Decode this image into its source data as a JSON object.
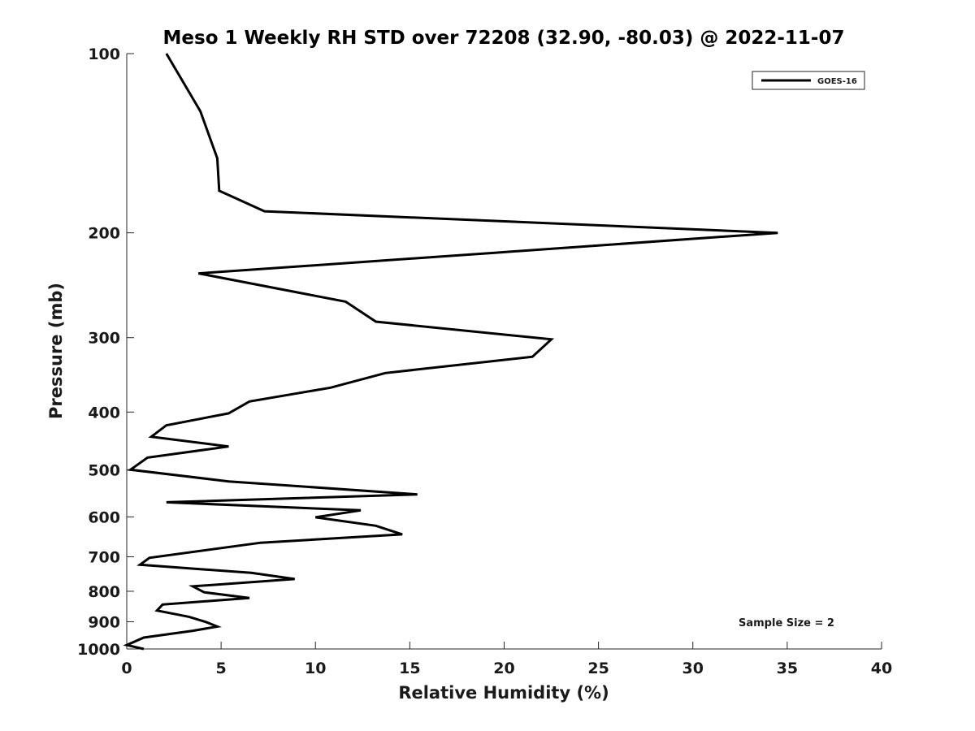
{
  "chart_data": {
    "type": "line",
    "title": "Meso 1 Weekly RH STD over 72208 (32.90, -80.03) @ 2022-11-07",
    "xlabel": "Relative Humidity (%)",
    "ylabel": "Pressure (mb)",
    "xlim": [
      0,
      40
    ],
    "ylim": [
      100,
      1000
    ],
    "yscale": "log",
    "y_reversed": true,
    "x_ticks": [
      0,
      5,
      10,
      15,
      20,
      25,
      30,
      35,
      40
    ],
    "y_ticks": [
      100,
      200,
      300,
      400,
      500,
      600,
      700,
      800,
      900,
      1000
    ],
    "legend_position": "top-right",
    "annotation": "Sample Size = 2",
    "series": [
      {
        "name": "GOES-16",
        "color": "#000000",
        "points": [
          [
            2.1,
            100
          ],
          [
            3.9,
            125
          ],
          [
            4.8,
            150
          ],
          [
            4.8,
            150.5
          ],
          [
            4.9,
            170
          ],
          [
            7.3,
            184
          ],
          [
            34.5,
            200
          ],
          [
            19.5,
            216
          ],
          [
            3.8,
            234
          ],
          [
            11.6,
            261
          ],
          [
            13.2,
            282
          ],
          [
            22.5,
            302
          ],
          [
            21.5,
            323
          ],
          [
            13.7,
            344
          ],
          [
            10.8,
            364
          ],
          [
            6.5,
            384
          ],
          [
            5.4,
            402
          ],
          [
            2.1,
            421
          ],
          [
            1.3,
            440
          ],
          [
            5.4,
            457
          ],
          [
            1.1,
            477
          ],
          [
            0.2,
            500
          ],
          [
            5.4,
            523
          ],
          [
            15.4,
            550
          ],
          [
            2.1,
            567
          ],
          [
            12.4,
            585
          ],
          [
            10.0,
            601
          ],
          [
            13.2,
            621
          ],
          [
            14.6,
            642
          ],
          [
            7.1,
            663
          ],
          [
            1.2,
            703
          ],
          [
            0.7,
            722
          ],
          [
            6.6,
            745
          ],
          [
            8.9,
            763
          ],
          [
            3.5,
            785
          ],
          [
            4.1,
            803
          ],
          [
            6.5,
            821
          ],
          [
            1.9,
            842
          ],
          [
            1.6,
            862
          ],
          [
            3.3,
            883
          ],
          [
            4.2,
            901
          ],
          [
            4.8,
            917
          ],
          [
            3.5,
            932
          ],
          [
            0.9,
            957
          ],
          [
            0.0,
            985
          ],
          [
            0.9,
            1000
          ]
        ]
      }
    ]
  }
}
